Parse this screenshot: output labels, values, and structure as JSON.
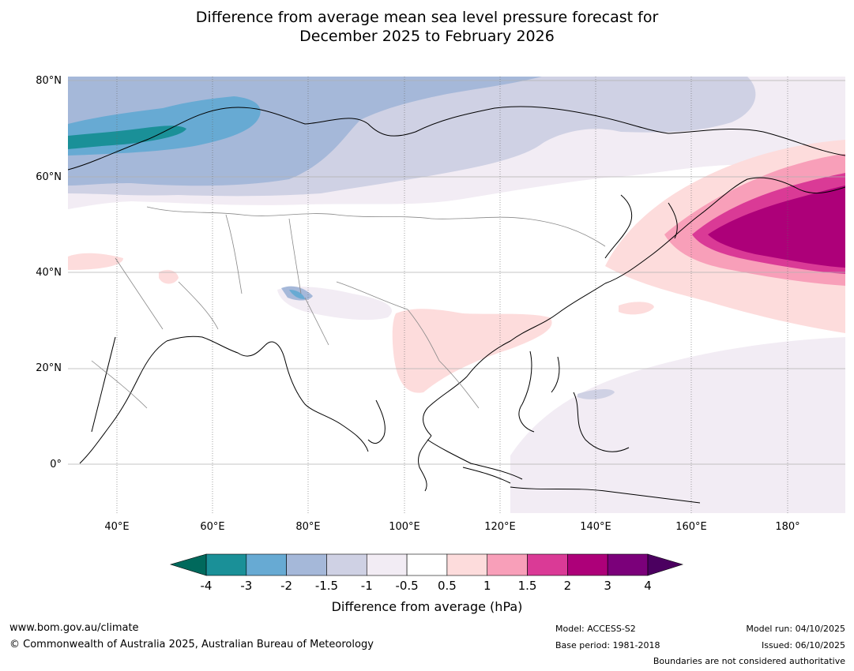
{
  "title": {
    "line1": "Difference from average mean sea level pressure forecast for",
    "line2": "December 2025 to February 2026"
  },
  "map": {
    "lat_labels": [
      "80°N",
      "60°N",
      "40°N",
      "20°N",
      "0°"
    ],
    "lon_labels": [
      "40°E",
      "60°E",
      "80°E",
      "100°E",
      "120°E",
      "140°E",
      "160°E",
      "180°"
    ]
  },
  "legend": {
    "ticks": [
      "-4",
      "-3",
      "-2",
      "-1.5",
      "-1",
      "-0.5",
      "0.5",
      "1",
      "1.5",
      "2",
      "3",
      "4"
    ],
    "colors": {
      "under": "#00695c",
      "bins": [
        "#1a9098",
        "#67aad3",
        "#a5b8d9",
        "#cfd1e4",
        "#f2ecf4",
        "#ffffff",
        "#fddcdc",
        "#f89fb9",
        "#da3a96",
        "#ad0079",
        "#7b007a"
      ],
      "over": "#4b0060"
    },
    "label": "Difference from average (hPa)"
  },
  "footer": {
    "website": "www.bom.gov.au/climate",
    "copyright": "© Commonwealth of Australia 2025, Australian Bureau of Meteorology",
    "model": "Model: ACCESS-S2",
    "base_period": "Base period: 1981-2018",
    "model_run": "Model run: 04/10/2025",
    "issued": "Issued: 06/10/2025",
    "disclaimer": "Boundaries are not considered authoritative"
  }
}
